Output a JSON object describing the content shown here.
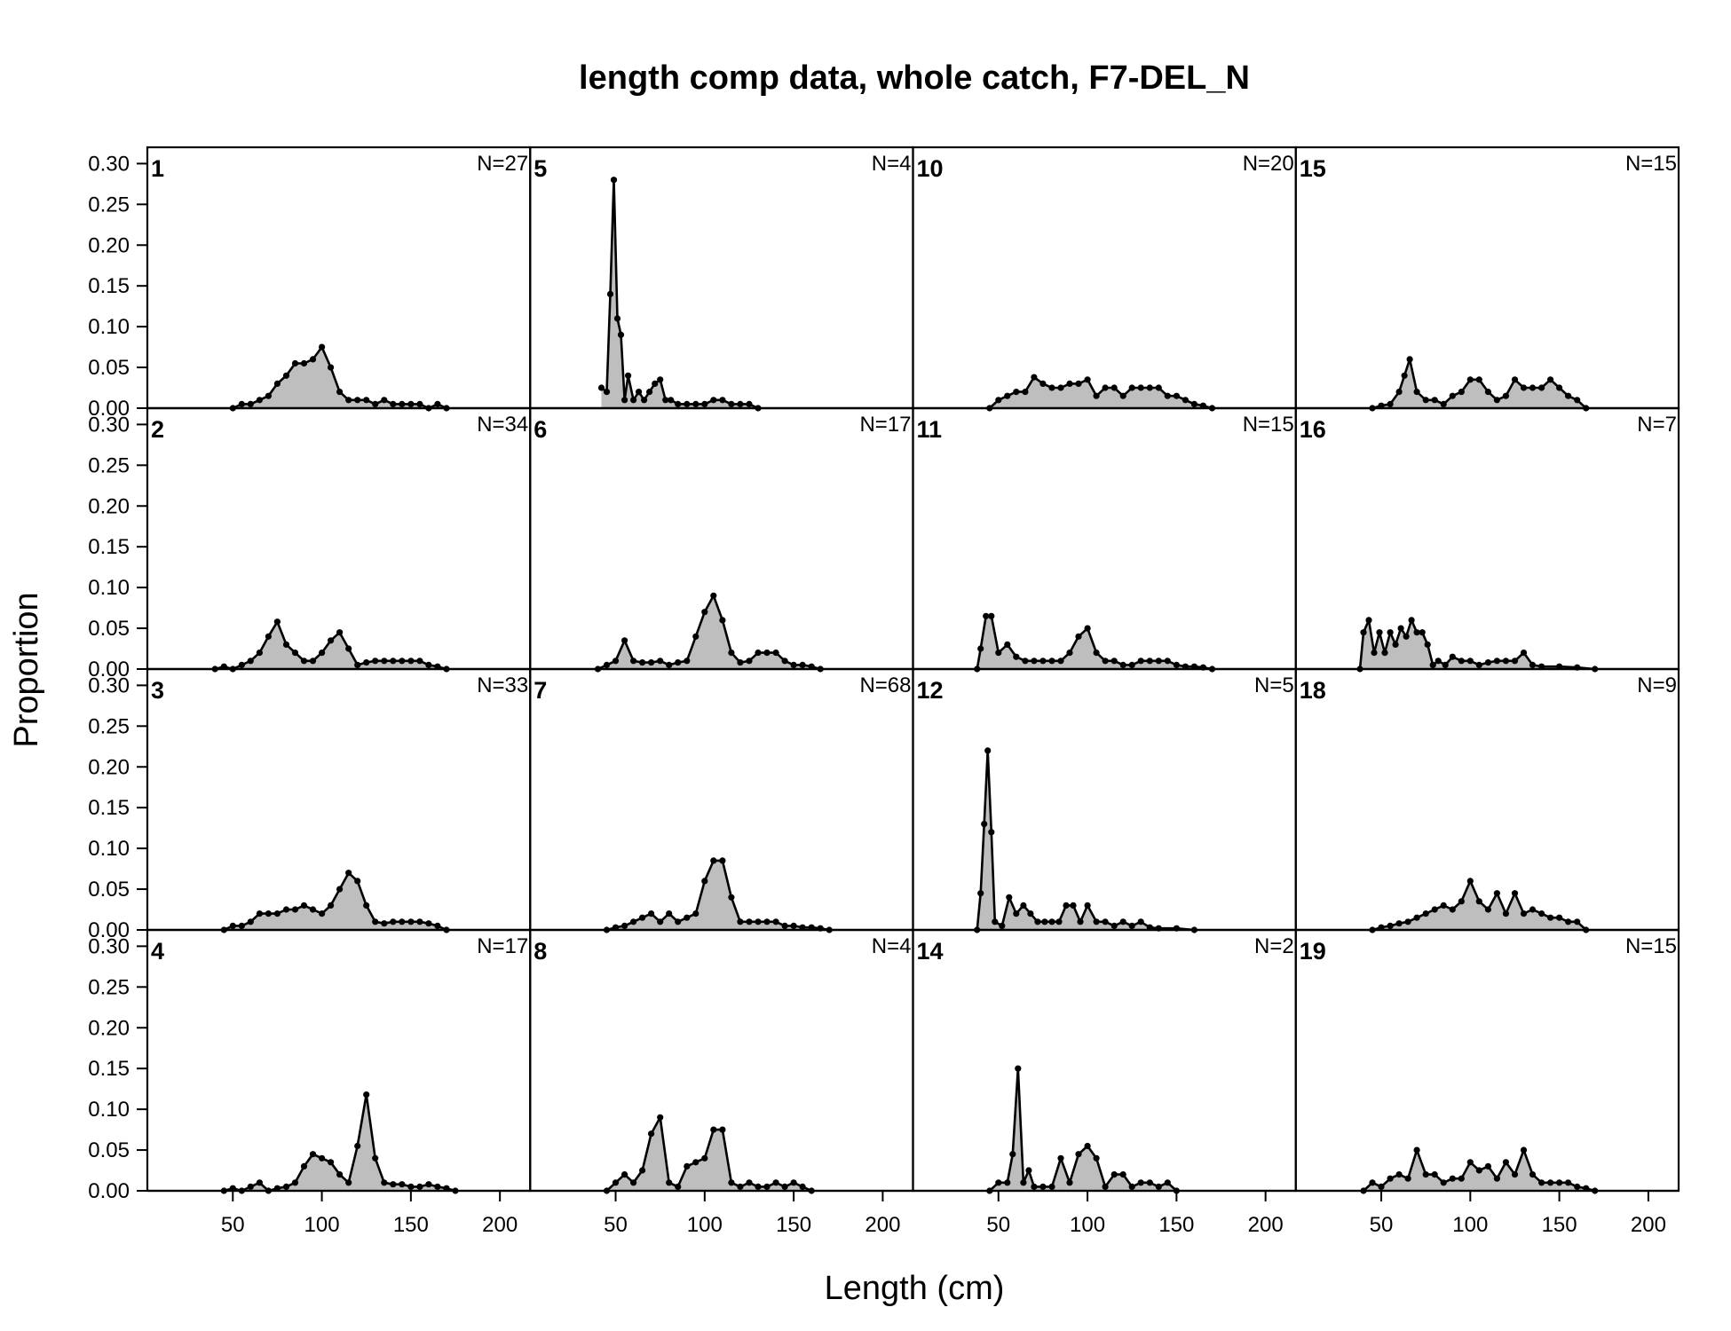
{
  "chart_data": {
    "type": "area",
    "title": "length comp data, whole catch, F7-DEL_N",
    "xlabel": "Length (cm)",
    "ylabel": "Proportion",
    "xlim": [
      2,
      217
    ],
    "ylim": [
      0,
      0.32
    ],
    "x_ticks": [
      "50",
      "100",
      "150",
      "200"
    ],
    "y_ticks": [
      "0.00",
      "0.05",
      "0.10",
      "0.15",
      "0.20",
      "0.25",
      "0.30"
    ],
    "grid": false,
    "colors": {
      "fill": "#bebebe",
      "line": "#000000"
    },
    "layout": {
      "rows": 4,
      "cols": 4,
      "order": "column-major"
    },
    "panels": [
      {
        "id": "1",
        "n_label": "N=27",
        "x": [
          50,
          55,
          60,
          65,
          70,
          75,
          80,
          85,
          90,
          95,
          100,
          105,
          110,
          115,
          120,
          125,
          130,
          135,
          140,
          145,
          150,
          155,
          160,
          165,
          170
        ],
        "y": [
          0,
          0.005,
          0.005,
          0.01,
          0.015,
          0.03,
          0.04,
          0.055,
          0.055,
          0.06,
          0.075,
          0.05,
          0.02,
          0.01,
          0.01,
          0.01,
          0.005,
          0.01,
          0.005,
          0.005,
          0.005,
          0.005,
          0,
          0.005,
          0
        ]
      },
      {
        "id": "2",
        "n_label": "N=34",
        "x": [
          40,
          45,
          50,
          55,
          60,
          65,
          70,
          75,
          80,
          85,
          90,
          95,
          100,
          105,
          110,
          115,
          120,
          125,
          130,
          135,
          140,
          145,
          150,
          155,
          160,
          165,
          170
        ],
        "y": [
          0,
          0.003,
          0,
          0.005,
          0.01,
          0.02,
          0.04,
          0.058,
          0.03,
          0.02,
          0.01,
          0.01,
          0.02,
          0.035,
          0.045,
          0.025,
          0.005,
          0.008,
          0.01,
          0.01,
          0.01,
          0.01,
          0.01,
          0.01,
          0.005,
          0.003,
          0
        ]
      },
      {
        "id": "3",
        "n_label": "N=33",
        "x": [
          45,
          50,
          55,
          60,
          65,
          70,
          75,
          80,
          85,
          90,
          95,
          100,
          105,
          110,
          115,
          120,
          125,
          130,
          135,
          140,
          145,
          150,
          155,
          160,
          165,
          170
        ],
        "y": [
          0,
          0.005,
          0.005,
          0.01,
          0.02,
          0.02,
          0.02,
          0.025,
          0.025,
          0.03,
          0.025,
          0.02,
          0.03,
          0.05,
          0.07,
          0.06,
          0.03,
          0.01,
          0.008,
          0.01,
          0.01,
          0.01,
          0.01,
          0.008,
          0.005,
          0
        ]
      },
      {
        "id": "4",
        "n_label": "N=17",
        "x": [
          45,
          50,
          55,
          60,
          65,
          70,
          75,
          80,
          85,
          90,
          95,
          100,
          105,
          110,
          115,
          120,
          125,
          130,
          135,
          140,
          145,
          150,
          155,
          160,
          165,
          170,
          175
        ],
        "y": [
          0,
          0.003,
          0,
          0.005,
          0.01,
          0,
          0.003,
          0.005,
          0.01,
          0.03,
          0.045,
          0.04,
          0.035,
          0.02,
          0.01,
          0.055,
          0.118,
          0.04,
          0.01,
          0.008,
          0.008,
          0.005,
          0.005,
          0.008,
          0.005,
          0.003,
          0
        ]
      },
      {
        "id": "5",
        "n_label": "N=4",
        "x": [
          42,
          45,
          47,
          49,
          51,
          53,
          55,
          57,
          60,
          63,
          66,
          69,
          72,
          75,
          78,
          81,
          85,
          90,
          95,
          100,
          105,
          110,
          115,
          120,
          125,
          130
        ],
        "y": [
          0.025,
          0.02,
          0.14,
          0.28,
          0.11,
          0.09,
          0.01,
          0.04,
          0.01,
          0.02,
          0.01,
          0.02,
          0.03,
          0.035,
          0.01,
          0.01,
          0.005,
          0.005,
          0.005,
          0.005,
          0.01,
          0.01,
          0.005,
          0.005,
          0.005,
          0
        ]
      },
      {
        "id": "6",
        "n_label": "N=17",
        "x": [
          40,
          45,
          50,
          55,
          60,
          65,
          70,
          75,
          80,
          85,
          90,
          95,
          100,
          105,
          110,
          115,
          120,
          125,
          130,
          135,
          140,
          145,
          150,
          155,
          160,
          165
        ],
        "y": [
          0,
          0.005,
          0.01,
          0.035,
          0.01,
          0.008,
          0.008,
          0.01,
          0.005,
          0.008,
          0.01,
          0.04,
          0.07,
          0.09,
          0.06,
          0.02,
          0.008,
          0.01,
          0.02,
          0.02,
          0.02,
          0.01,
          0.005,
          0.005,
          0.003,
          0
        ]
      },
      {
        "id": "7",
        "n_label": "N=68",
        "x": [
          45,
          50,
          55,
          60,
          65,
          70,
          75,
          80,
          85,
          90,
          95,
          100,
          105,
          110,
          115,
          120,
          125,
          130,
          135,
          140,
          145,
          150,
          155,
          160,
          165,
          170
        ],
        "y": [
          0,
          0.003,
          0.005,
          0.01,
          0.015,
          0.02,
          0.01,
          0.02,
          0.01,
          0.015,
          0.02,
          0.06,
          0.085,
          0.085,
          0.04,
          0.01,
          0.01,
          0.01,
          0.01,
          0.01,
          0.005,
          0.005,
          0.003,
          0.003,
          0.002,
          0
        ]
      },
      {
        "id": "8",
        "n_label": "N=4",
        "x": [
          45,
          50,
          55,
          60,
          65,
          70,
          75,
          80,
          85,
          90,
          95,
          100,
          105,
          110,
          115,
          120,
          125,
          130,
          135,
          140,
          145,
          150,
          155,
          160
        ],
        "y": [
          0,
          0.01,
          0.02,
          0.01,
          0.025,
          0.07,
          0.09,
          0.01,
          0.005,
          0.03,
          0.035,
          0.04,
          0.075,
          0.075,
          0.01,
          0.005,
          0.01,
          0.005,
          0.005,
          0.01,
          0.005,
          0.01,
          0.005,
          0
        ]
      },
      {
        "id": "10",
        "n_label": "N=20",
        "x": [
          45,
          50,
          55,
          60,
          65,
          70,
          75,
          80,
          85,
          90,
          95,
          100,
          105,
          110,
          115,
          120,
          125,
          130,
          135,
          140,
          145,
          150,
          155,
          160,
          165,
          170
        ],
        "y": [
          0,
          0.01,
          0.015,
          0.02,
          0.02,
          0.038,
          0.03,
          0.025,
          0.025,
          0.03,
          0.03,
          0.035,
          0.015,
          0.025,
          0.025,
          0.015,
          0.025,
          0.025,
          0.025,
          0.025,
          0.015,
          0.015,
          0.01,
          0.005,
          0.003,
          0
        ]
      },
      {
        "id": "11",
        "n_label": "N=15",
        "x": [
          38,
          40,
          43,
          46,
          50,
          55,
          60,
          65,
          70,
          75,
          80,
          85,
          90,
          95,
          100,
          105,
          110,
          115,
          120,
          125,
          130,
          135,
          140,
          145,
          150,
          155,
          160,
          165,
          170
        ],
        "y": [
          0,
          0.025,
          0.065,
          0.065,
          0.02,
          0.03,
          0.015,
          0.01,
          0.01,
          0.01,
          0.01,
          0.01,
          0.02,
          0.04,
          0.05,
          0.02,
          0.01,
          0.01,
          0.005,
          0.005,
          0.01,
          0.01,
          0.01,
          0.01,
          0.005,
          0.003,
          0.003,
          0.002,
          0
        ]
      },
      {
        "id": "12",
        "n_label": "N=5",
        "x": [
          38,
          40,
          42,
          44,
          46,
          48,
          52,
          56,
          60,
          64,
          68,
          72,
          76,
          80,
          84,
          88,
          92,
          96,
          100,
          105,
          110,
          115,
          120,
          125,
          130,
          135,
          140,
          150,
          160
        ],
        "y": [
          0,
          0.045,
          0.13,
          0.22,
          0.12,
          0.01,
          0.005,
          0.04,
          0.02,
          0.03,
          0.02,
          0.01,
          0.01,
          0.01,
          0.01,
          0.03,
          0.03,
          0.01,
          0.03,
          0.01,
          0.01,
          0.005,
          0.01,
          0.005,
          0.01,
          0.003,
          0.002,
          0.002,
          0
        ]
      },
      {
        "id": "14",
        "n_label": "N=2",
        "x": [
          45,
          50,
          55,
          58,
          61,
          64,
          67,
          70,
          75,
          80,
          85,
          90,
          95,
          100,
          105,
          110,
          115,
          120,
          125,
          130,
          135,
          140,
          145,
          150
        ],
        "y": [
          0,
          0.01,
          0.01,
          0.045,
          0.15,
          0.01,
          0.025,
          0.005,
          0.005,
          0.005,
          0.04,
          0.01,
          0.045,
          0.055,
          0.04,
          0.005,
          0.02,
          0.02,
          0.005,
          0.01,
          0.01,
          0.005,
          0.01,
          0
        ]
      },
      {
        "id": "15",
        "n_label": "N=15",
        "x": [
          45,
          50,
          55,
          60,
          63,
          66,
          70,
          75,
          80,
          85,
          90,
          95,
          100,
          105,
          110,
          115,
          120,
          125,
          130,
          135,
          140,
          145,
          150,
          155,
          160,
          165
        ],
        "y": [
          0,
          0.003,
          0.005,
          0.02,
          0.04,
          0.06,
          0.02,
          0.01,
          0.01,
          0.005,
          0.015,
          0.02,
          0.035,
          0.035,
          0.02,
          0.01,
          0.015,
          0.035,
          0.025,
          0.025,
          0.025,
          0.035,
          0.025,
          0.015,
          0.01,
          0
        ]
      },
      {
        "id": "16",
        "n_label": "N=7",
        "x": [
          38,
          40,
          43,
          46,
          49,
          52,
          55,
          58,
          61,
          64,
          67,
          70,
          73,
          76,
          79,
          82,
          86,
          90,
          95,
          100,
          105,
          110,
          115,
          120,
          125,
          130,
          135,
          140,
          150,
          160,
          170
        ],
        "y": [
          0,
          0.045,
          0.06,
          0.02,
          0.045,
          0.02,
          0.045,
          0.03,
          0.05,
          0.04,
          0.06,
          0.045,
          0.045,
          0.03,
          0.005,
          0.01,
          0.005,
          0.015,
          0.01,
          0.01,
          0.005,
          0.008,
          0.01,
          0.01,
          0.01,
          0.02,
          0.005,
          0.003,
          0.003,
          0.002,
          0
        ]
      },
      {
        "id": "18",
        "n_label": "N=9",
        "x": [
          45,
          50,
          55,
          60,
          65,
          70,
          75,
          80,
          85,
          90,
          95,
          100,
          105,
          110,
          115,
          120,
          125,
          130,
          135,
          140,
          145,
          150,
          155,
          160,
          165
        ],
        "y": [
          0,
          0.003,
          0.005,
          0.008,
          0.01,
          0.015,
          0.02,
          0.025,
          0.03,
          0.025,
          0.035,
          0.06,
          0.035,
          0.025,
          0.045,
          0.02,
          0.045,
          0.02,
          0.025,
          0.02,
          0.015,
          0.015,
          0.01,
          0.01,
          0
        ]
      },
      {
        "id": "19",
        "n_label": "N=15",
        "x": [
          40,
          45,
          50,
          55,
          60,
          65,
          70,
          75,
          80,
          85,
          90,
          95,
          100,
          105,
          110,
          115,
          120,
          125,
          130,
          135,
          140,
          145,
          150,
          155,
          160,
          165,
          170
        ],
        "y": [
          0,
          0.01,
          0.005,
          0.015,
          0.02,
          0.015,
          0.05,
          0.02,
          0.02,
          0.01,
          0.015,
          0.015,
          0.035,
          0.025,
          0.03,
          0.015,
          0.035,
          0.02,
          0.05,
          0.02,
          0.01,
          0.01,
          0.01,
          0.01,
          0.005,
          0.003,
          0
        ]
      }
    ]
  }
}
